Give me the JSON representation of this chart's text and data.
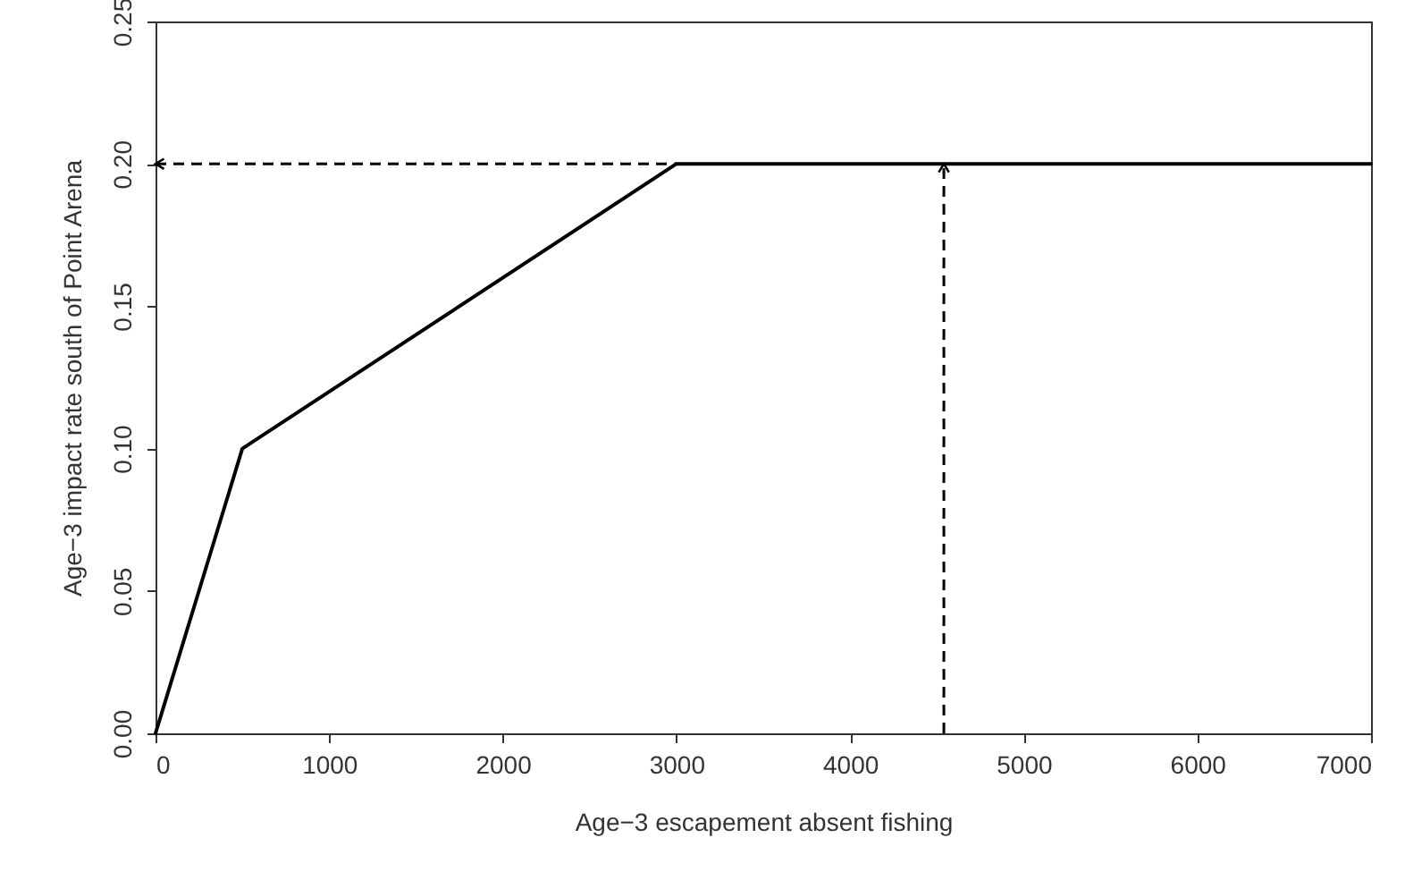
{
  "chart_data": {
    "type": "line",
    "xlabel": "Age−3 escapement absent fishing",
    "ylabel": "Age−3 impact rate south of Point Arena",
    "x": [
      0,
      500,
      3000,
      7000
    ],
    "series": [
      {
        "color": "#000000",
        "values": [
          0,
          0.1,
          0.2,
          0.2
        ]
      }
    ],
    "xlim": [
      0,
      7000
    ],
    "xticks": [
      0,
      1000,
      2000,
      3000,
      4000,
      5000,
      6000,
      7000
    ],
    "ylim": [
      0,
      0.25
    ],
    "yticks": [
      {
        "value": 0,
        "label": "0.00"
      },
      0.05,
      {
        "value": 0.1,
        "label": "0.10"
      },
      0.15,
      {
        "value": 0.2,
        "label": "0.20"
      },
      0.25
    ],
    "grid": false,
    "marker": "none",
    "line_style": "solid",
    "ref_lines": [
      {
        "axis": "x",
        "value": 4540,
        "color": "#000000",
        "line_style": "dashed"
      },
      {
        "axis": "y",
        "value": 0.2,
        "color": "#000000",
        "line_style": "dashed"
      }
    ]
  }
}
